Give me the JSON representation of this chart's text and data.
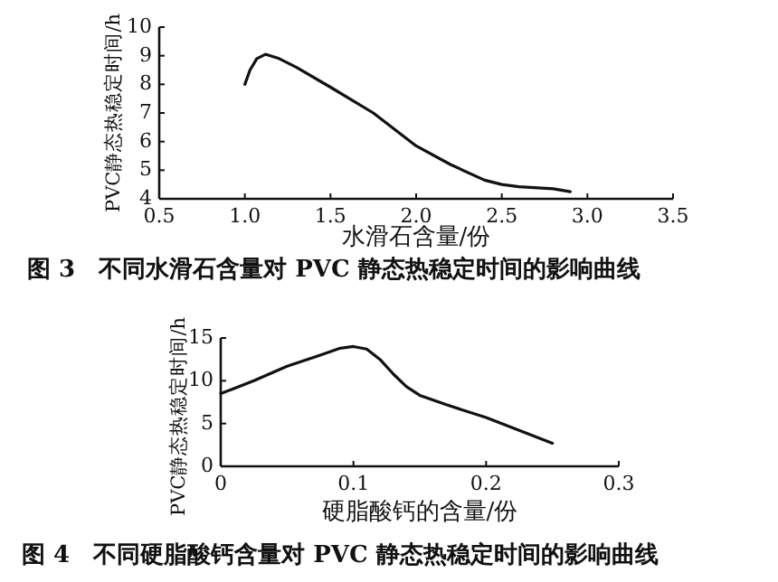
{
  "chart_data": [
    {
      "type": "line",
      "title": "图 3　不同水滑石含量对 PVC 静态热稳定时间的影响曲线",
      "xlabel": "水滑石含量/份",
      "ylabel": "PVC静态热稳定时间/h",
      "color": "#111111",
      "marker": "none",
      "line_style": "solid",
      "grid": false,
      "x": [
        1.0,
        1.03,
        1.07,
        1.12,
        1.2,
        1.3,
        1.5,
        1.75,
        2.0,
        2.2,
        2.4,
        2.5,
        2.6,
        2.8,
        2.9
      ],
      "values": [
        8.0,
        8.5,
        8.9,
        9.05,
        8.9,
        8.6,
        7.9,
        7.0,
        5.85,
        5.2,
        4.65,
        4.5,
        4.42,
        4.35,
        4.25
      ],
      "xlim": [
        0.5,
        3.5
      ],
      "xticks": [
        {
          "value": 0.5,
          "label": "0.5"
        },
        {
          "value": 1.0,
          "label": "1.0"
        },
        {
          "value": 1.5,
          "label": "1.5"
        },
        {
          "value": 2.0,
          "label": "2.0"
        },
        {
          "value": 2.5,
          "label": "2.5"
        },
        {
          "value": 3.0,
          "label": "3.0"
        },
        {
          "value": 3.5,
          "label": "3.5"
        }
      ],
      "ylim": [
        4,
        10
      ],
      "yticks": [
        4,
        5,
        6,
        7,
        8,
        9,
        10
      ]
    },
    {
      "type": "line",
      "title": "图 4　不同硬脂酸钙含量对 PVC 静态热稳定时间的影响曲线",
      "xlabel": "硬脂酸钙的含量/份",
      "ylabel": "PVC静态热稳定时间/h",
      "color": "#111111",
      "marker": "none",
      "line_style": "solid",
      "grid": false,
      "x": [
        0,
        0.025,
        0.05,
        0.075,
        0.09,
        0.1,
        0.11,
        0.12,
        0.13,
        0.14,
        0.15,
        0.17,
        0.2,
        0.25
      ],
      "values": [
        8.5,
        10,
        11.7,
        13,
        13.8,
        14,
        13.7,
        12.5,
        10.8,
        9.3,
        8.3,
        7.2,
        5.7,
        2.7
      ],
      "xlim": [
        0,
        0.3
      ],
      "xticks": [
        0,
        0.1,
        0.2,
        0.3
      ],
      "ylim": [
        0,
        15
      ],
      "yticks": [
        0,
        5,
        10,
        15
      ]
    }
  ]
}
